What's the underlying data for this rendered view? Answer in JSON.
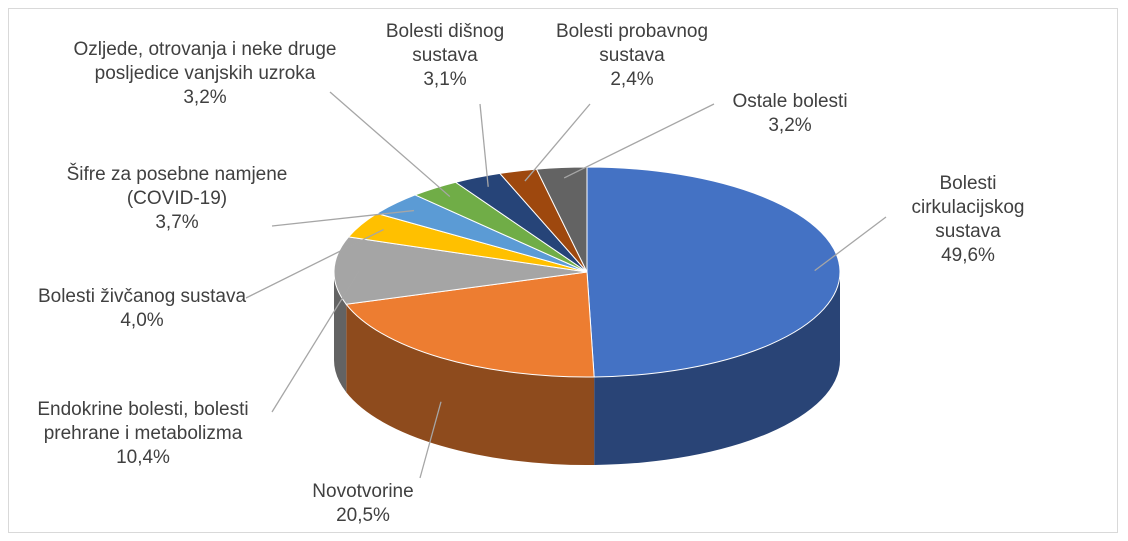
{
  "chart_data": {
    "type": "pie3d",
    "categories": [
      "Bolesti cirkulacijskog sustava",
      "Novotvorine",
      "Endokrine bolesti, bolesti prehrane i metabolizma",
      "Bolesti živčanog sustava",
      "Šifre za posebne namjene (COVID-19)",
      "Ozljede, otrovanja i neke druge posljedice vanjskih uzroka",
      "Bolesti dišnog sustava",
      "Bolesti probavnog sustava",
      "Ostale bolesti"
    ],
    "values": [
      49.6,
      20.5,
      10.4,
      4.0,
      3.7,
      3.2,
      3.1,
      2.4,
      3.2
    ],
    "value_labels": [
      "49,6%",
      "20,5%",
      "10,4%",
      "4,0%",
      "3,7%",
      "3,2%",
      "3,1%",
      "2,4%",
      "3,2%"
    ],
    "colors": [
      "#4472c4",
      "#ed7d31",
      "#a5a5a5",
      "#ffc000",
      "#5b9bd5",
      "#70ad47",
      "#264478",
      "#9e480e",
      "#636363"
    ]
  }
}
